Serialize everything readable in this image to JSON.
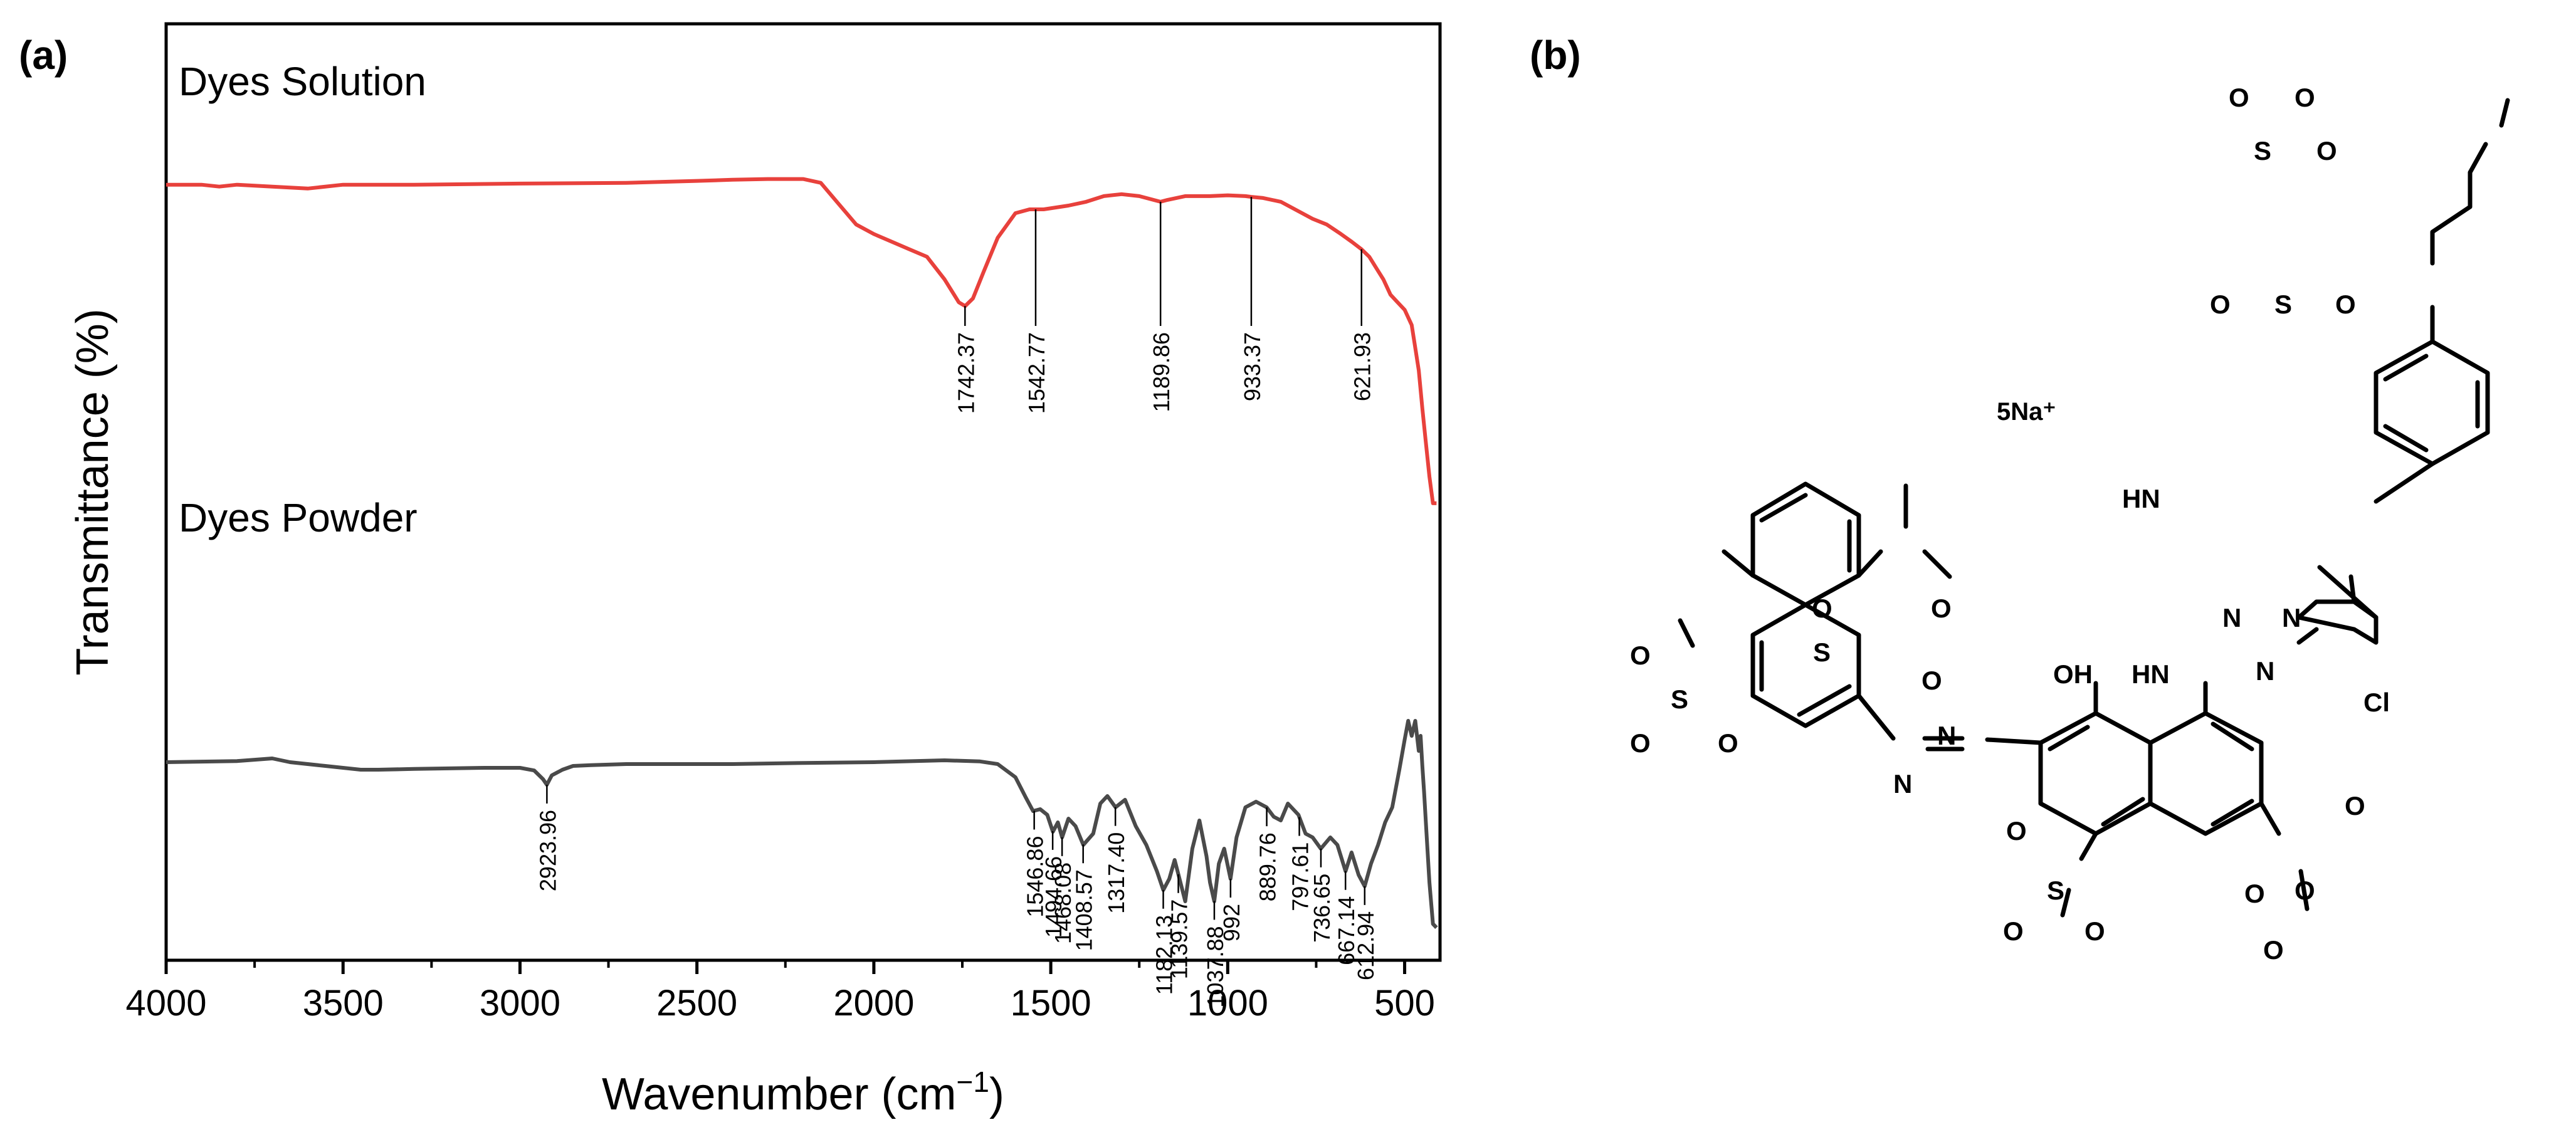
{
  "panels": {
    "a_label": "(a)",
    "b_label": "(b)"
  },
  "colors": {
    "solution": "#e8413c",
    "powder": "#4a4a4a",
    "axis": "#000000"
  },
  "chart_data": {
    "type": "line",
    "xlabel": "Wavenumber (cm",
    "xlabel_sup": "−1",
    "xlabel_close": ")",
    "ylabel": "Transmittance (%)",
    "xlim": [
      4000,
      400
    ],
    "x_reversed": true,
    "ylim": [
      0,
      100
    ],
    "y_ticks_shown": false,
    "x_ticks": [
      4000,
      3500,
      3000,
      2500,
      2000,
      1500,
      1000,
      500
    ],
    "x_tick_labels": [
      "4000",
      "3500",
      "3000",
      "2500",
      "2000",
      "1500",
      "1000",
      "500"
    ],
    "series": [
      {
        "name": "Dyes Solution",
        "color": "#e8413c",
        "x": [
          4000,
          3900,
          3850,
          3800,
          3700,
          3600,
          3500,
          3300,
          3000,
          2700,
          2500,
          2400,
          2300,
          2200,
          2150,
          2100,
          2050,
          2000,
          1950,
          1900,
          1850,
          1800,
          1760,
          1742,
          1720,
          1690,
          1650,
          1600,
          1560,
          1542,
          1520,
          1450,
          1400,
          1350,
          1300,
          1250,
          1210,
          1190,
          1170,
          1120,
          1050,
          1000,
          950,
          933,
          900,
          850,
          800,
          760,
          720,
          680,
          650,
          622,
          600,
          580,
          560,
          540,
          520,
          500,
          480,
          470,
          460,
          450,
          440,
          430,
          420,
          410
        ],
        "y": [
          86,
          86,
          85.5,
          86,
          85.5,
          85,
          86,
          86,
          86.3,
          86.5,
          87,
          87.3,
          87.5,
          87.5,
          86.5,
          81,
          75.5,
          73,
          71,
          69,
          67,
          61,
          55,
          54,
          56,
          63,
          72,
          78.5,
          79.5,
          79.5,
          79.5,
          80.5,
          81.5,
          83,
          83.5,
          83,
          82,
          81.5,
          82,
          83,
          83,
          83.2,
          83,
          82.8,
          82.5,
          81.5,
          79,
          77,
          75.5,
          73,
          71,
          69,
          67,
          64,
          61,
          57,
          55,
          53,
          49,
          43,
          37,
          27,
          18,
          9,
          2,
          2
        ],
        "peak_labels": [
          "1742.37",
          "1542.77",
          "1189.86",
          "933.37",
          "621.93"
        ],
        "peak_x": [
          1742.37,
          1542.77,
          1189.86,
          933.37,
          621.93
        ]
      },
      {
        "name": "Dyes Powder",
        "color": "#4a4a4a",
        "x": [
          4000,
          3800,
          3700,
          3650,
          3550,
          3450,
          3400,
          3300,
          3100,
          3000,
          2960,
          2935,
          2924,
          2910,
          2880,
          2850,
          2800,
          2700,
          2500,
          2400,
          2200,
          2000,
          1800,
          1700,
          1650,
          1600,
          1570,
          1550,
          1530,
          1510,
          1494,
          1480,
          1468,
          1450,
          1430,
          1408,
          1380,
          1360,
          1340,
          1317,
          1290,
          1260,
          1230,
          1200,
          1182,
          1165,
          1150,
          1139,
          1120,
          1100,
          1080,
          1060,
          1050,
          1038,
          1025,
          1010,
          992,
          975,
          950,
          920,
          890,
          870,
          850,
          830,
          800,
          780,
          760,
          737,
          710,
          690,
          667,
          650,
          630,
          613,
          595,
          575,
          555,
          535,
          515,
          500,
          490,
          480,
          470,
          460,
          455,
          450,
          445,
          440,
          430,
          420,
          410
        ],
        "y": [
          44,
          44.3,
          45,
          44,
          43,
          42,
          42,
          42.2,
          42.5,
          42.5,
          41.8,
          39.5,
          38,
          40.5,
          42,
          43,
          43.2,
          43.5,
          43.5,
          43.5,
          43.8,
          44,
          44.5,
          44.2,
          43.5,
          40,
          34.5,
          31,
          31.5,
          30,
          25.5,
          28,
          24,
          29,
          27,
          22,
          25,
          33,
          35,
          32,
          34,
          27,
          22,
          15,
          10,
          13,
          18,
          14,
          7,
          21,
          28.5,
          19,
          12,
          7,
          17,
          21,
          13,
          24,
          32,
          33.5,
          32,
          29.5,
          28.5,
          33,
          30,
          25,
          24,
          21,
          24,
          22,
          15,
          20,
          14,
          11,
          17,
          22,
          28,
          32,
          42,
          50,
          55,
          51,
          55,
          47,
          51,
          43,
          36,
          28,
          12,
          1,
          0
        ],
        "peak_labels": [
          "2923.96",
          "1546.86",
          "1494.66",
          "1468.08",
          "1408.57",
          "1317.40",
          "1182.13",
          "1139.57",
          "1037.88",
          "992",
          "889.76",
          "797.61",
          "736.65",
          "667.14",
          "612.94"
        ],
        "peak_x": [
          2923.96,
          1546.86,
          1494.66,
          1468.08,
          1408.57,
          1317.4,
          1182.13,
          1139.57,
          1037.88,
          992,
          889.76,
          797.61,
          736.65,
          667.14,
          612.94
        ]
      }
    ]
  },
  "structure": {
    "caption": "5Na⁺",
    "atoms": [
      "HN",
      "N",
      "N",
      "N",
      "HN",
      "Cl",
      "OH",
      "N",
      "N",
      "S",
      "S",
      "S",
      "S",
      "S",
      "O",
      "O",
      "O",
      "O",
      "O",
      "O",
      "O",
      "O",
      "O",
      "O",
      "O",
      "O",
      "O",
      "O",
      "O",
      "O",
      "O",
      "O"
    ]
  }
}
